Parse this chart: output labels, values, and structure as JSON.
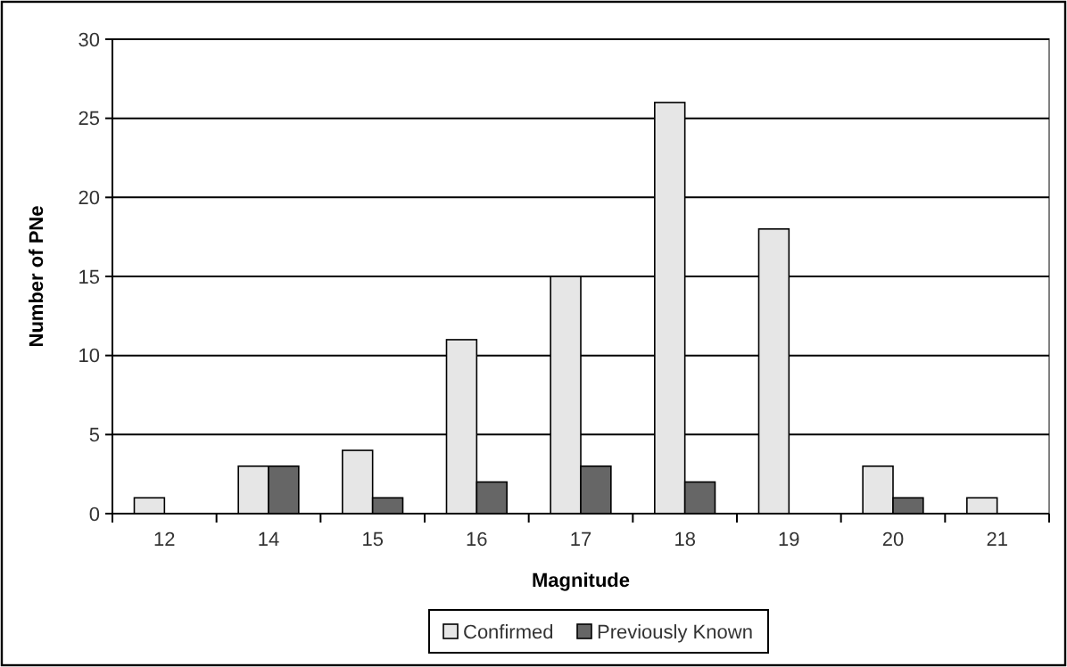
{
  "chart_data": {
    "type": "bar",
    "xlabel": "Magnitude",
    "ylabel": "Number of PNe",
    "categories": [
      "12",
      "14",
      "15",
      "16",
      "17",
      "18",
      "19",
      "20",
      "21"
    ],
    "series": [
      {
        "name": "Confirmed",
        "color": "#e6e6e6",
        "values": [
          1,
          3,
          4,
          11,
          15,
          26,
          18,
          3,
          1
        ]
      },
      {
        "name": "Previously Known",
        "color": "#666666",
        "values": [
          null,
          3,
          1,
          2,
          3,
          2,
          null,
          1,
          null
        ]
      }
    ],
    "ylim": [
      0,
      30
    ],
    "yticks": [
      0,
      5,
      10,
      15,
      20,
      25,
      30
    ],
    "grid": "y",
    "legend": "bottom"
  }
}
